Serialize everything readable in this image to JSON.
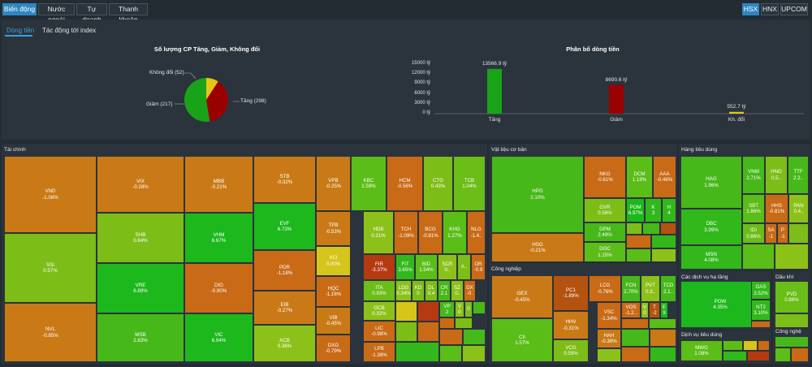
{
  "top_tabs": [
    {
      "label": "Biến động",
      "active": true
    },
    {
      "label": "Nước ngoài",
      "active": false
    },
    {
      "label": "Tự doanh",
      "active": false
    },
    {
      "label": "Thanh khoản",
      "active": false
    }
  ],
  "exchanges": [
    {
      "label": "HSX",
      "active": true
    },
    {
      "label": "HNX",
      "active": false
    },
    {
      "label": "UPCOM",
      "active": false
    }
  ],
  "sub_tabs": [
    {
      "label": "Dòng tiền",
      "active": true
    },
    {
      "label": "Tác động tới index",
      "active": false
    }
  ],
  "colors": {
    "up": "#19a319",
    "down": "#9b0000",
    "flat": "#e8c416",
    "neutral_tile": "#c97a16"
  },
  "pie": {
    "title": "Số lượng CP Tăng, Giảm, Không đổi",
    "slices": [
      {
        "label": "Không đổi (52)",
        "value": 52,
        "color": "#e8c416"
      },
      {
        "label": "Giảm (217)",
        "value": 217,
        "color": "#9b0000"
      },
      {
        "label": "Tăng (298)",
        "value": 298,
        "color": "#19a319"
      }
    ]
  },
  "chart_data": [
    {
      "type": "pie",
      "title": "Số lượng CP Tăng, Giảm, Không đổi",
      "categories": [
        "Không đổi",
        "Giảm",
        "Tăng"
      ],
      "values": [
        52,
        217,
        298
      ]
    },
    {
      "type": "bar",
      "title": "Phân bổ dòng tiền",
      "categories": [
        "Tăng",
        "Giảm",
        "Kh. đổi"
      ],
      "values": [
        13566.9,
        8690.6,
        552.7
      ],
      "value_labels": [
        "13566.9 tỷ",
        "8690.6 tỷ",
        "552.7 tỷ"
      ],
      "yticks": [
        "15000 tỷ",
        "12000 tỷ",
        "9000 tỷ",
        "6000 tỷ",
        "3000 tỷ",
        "0 tỷ"
      ],
      "ylim": [
        0,
        15000
      ],
      "colors": [
        "#19a319",
        "#9b0000",
        "#e8c416"
      ]
    }
  ],
  "bar_chart": {
    "title": "Phân bổ dòng tiền"
  },
  "sectors": [
    {
      "name": "Tài chính",
      "tiles": [
        {
          "t": "VND",
          "v": "-1.08%",
          "c": "#c97a16"
        },
        {
          "t": "SSI",
          "v": "0.57%",
          "c": "#7dbd17"
        },
        {
          "t": "NVL",
          "v": "-0.85%",
          "c": "#c97a16"
        },
        {
          "t": "VIX",
          "v": "-0.28%",
          "c": "#c97a16"
        },
        {
          "t": "SHB",
          "v": "0.84%",
          "c": "#7dbd17"
        },
        {
          "t": "VRE",
          "v": "6.89%",
          "c": "#1cb81c"
        },
        {
          "t": "MSB",
          "v": "2.63%",
          "c": "#47b81a"
        },
        {
          "t": "MBB",
          "v": "-0.21%",
          "c": "#c97a16"
        },
        {
          "t": "VHM",
          "v": "6.67%",
          "c": "#1cb81c"
        },
        {
          "t": "DIG",
          "v": "-0.90%",
          "c": "#c96a16"
        },
        {
          "t": "VIC",
          "v": "6.94%",
          "c": "#1cb81c"
        },
        {
          "t": "STB",
          "v": "-0.32%",
          "c": "#c97a16"
        },
        {
          "t": "EVF",
          "v": "6.73%",
          "c": "#1cb81c"
        },
        {
          "t": "PDR",
          "v": "-1.18%",
          "c": "#c96a16"
        },
        {
          "t": "EIB",
          "v": "-0.27%",
          "c": "#c97a16"
        },
        {
          "t": "ACB",
          "v": "0.36%",
          "c": "#8cc11a"
        },
        {
          "t": "VPB",
          "v": "-0.25%",
          "c": "#c97a16"
        },
        {
          "t": "TPB",
          "v": "-0.53%",
          "c": "#c97a16"
        },
        {
          "t": "VCI",
          "v": "0.00%",
          "c": "#d6c51a"
        },
        {
          "t": "HQC",
          "v": "-1.16%",
          "c": "#c96a16"
        },
        {
          "t": "VIB",
          "v": "-0.45%",
          "c": "#c97a16"
        },
        {
          "t": "DXG",
          "v": "-0.79%",
          "c": "#c96a16"
        },
        {
          "t": "KBC",
          "v": "1.59%",
          "c": "#5bbd17"
        },
        {
          "t": "HCM",
          "v": "-0.56%",
          "c": "#c96a16"
        },
        {
          "t": "CTG",
          "v": "0.43%",
          "c": "#7dbd17"
        },
        {
          "t": "TCB",
          "v": "1.04%",
          "c": "#6bbd17"
        },
        {
          "t": "HDB",
          "v": "0.21%",
          "c": "#8cc11a"
        },
        {
          "t": "TCH",
          "v": "-1.09%",
          "c": "#c96a16"
        },
        {
          "t": "BCG",
          "v": "-0.81%",
          "c": "#c96a16"
        },
        {
          "t": "KHG",
          "v": "1.27%",
          "c": "#5bbd17"
        },
        {
          "t": "NLG",
          "v": "-1.4..",
          "c": "#c96a16"
        },
        {
          "t": "FIR",
          "v": "-3.37%",
          "c": "#b43a12"
        },
        {
          "t": "FIT",
          "v": "3.65%",
          "c": "#32b81a"
        },
        {
          "t": "BID",
          "v": "1.54%",
          "c": "#5bbd17"
        },
        {
          "t": "SCR",
          "v": "0..",
          "c": "#8cc11a"
        },
        {
          "t": "A..",
          "v": "",
          "c": "#7dbd17"
        },
        {
          "t": "OR",
          "v": "-0.9",
          "c": "#c96a16"
        },
        {
          "t": "ITA",
          "v": "0.93%",
          "c": "#6bbd17"
        },
        {
          "t": "LDG",
          "v": "0.34%",
          "c": "#8cc11a"
        },
        {
          "t": "KD",
          "v": "0",
          "c": "#7dbd17"
        },
        {
          "t": "DL",
          "v": "0.4",
          "c": "#7dbd17"
        },
        {
          "t": "CR",
          "v": "2.1",
          "c": "#47b81a"
        },
        {
          "t": "SZ",
          "v": "0.",
          "c": "#8cc11a"
        },
        {
          "t": "DX",
          "v": "-0.",
          "c": "#c96a16"
        },
        {
          "t": "OCB",
          "v": "0.32%",
          "c": "#8cc11a"
        },
        {
          "t": "VP",
          "v": "2",
          "c": "#47b81a"
        },
        {
          "t": "V",
          "v": "0",
          "c": "#8cc11a"
        },
        {
          "t": "0",
          "v": "",
          "c": "#7dbd17"
        },
        {
          "t": "LIC",
          "v": "-0.98%",
          "c": "#c96a16"
        },
        {
          "t": "LPB",
          "v": "-1.39%",
          "c": "#c96a16"
        }
      ]
    },
    {
      "name": "Vật liệu cơ bản",
      "tiles": [
        {
          "t": "HPG",
          "v": "2.10%",
          "c": "#47b81a"
        },
        {
          "t": "HSG",
          "v": "-0.21%",
          "c": "#c97a16"
        },
        {
          "t": "NKG",
          "v": "-0.61%",
          "c": "#c96a16"
        },
        {
          "t": "DCM",
          "v": "1.18%",
          "c": "#5bbd17"
        },
        {
          "t": "AAA",
          "v": "-0.46%",
          "c": "#c96a16"
        },
        {
          "t": "GVR",
          "v": "0.56%",
          "c": "#7dbd17"
        },
        {
          "t": "POM",
          "v": "6.97%",
          "c": "#1cb81c"
        },
        {
          "t": "K",
          "v": "3",
          "c": "#32b81a"
        },
        {
          "t": "H",
          "v": "4",
          "c": "#32b81a"
        },
        {
          "t": "DPM",
          "v": "2.49%",
          "c": "#47b81a"
        },
        {
          "t": "DGC",
          "v": "1.15%",
          "c": "#5bbd17"
        }
      ]
    },
    {
      "name": "Công nghiệp",
      "tiles": [
        {
          "t": "GEX",
          "v": "-0.45%",
          "c": "#c97a16"
        },
        {
          "t": "CII",
          "v": "1.57%",
          "c": "#5bbd17"
        },
        {
          "t": "PC1",
          "v": "-1.89%",
          "c": "#b4520f"
        },
        {
          "t": "HHV",
          "v": "-0.31%",
          "c": "#c97a16"
        },
        {
          "t": "VCG",
          "v": "0.59%",
          "c": "#7dbd17"
        },
        {
          "t": "LCG",
          "v": "-0.76%",
          "c": "#c96a16"
        },
        {
          "t": "FCN",
          "v": "2.70%",
          "c": "#47b81a"
        },
        {
          "t": "PVT",
          "v": "0.3..",
          "c": "#8cc11a"
        },
        {
          "t": "TCD",
          "v": "2.1..",
          "c": "#47b81a"
        },
        {
          "t": "VSC",
          "v": "-1.34%",
          "c": "#c96a16"
        },
        {
          "t": "VOS",
          "v": "-1.2..",
          "c": "#c96a16"
        },
        {
          "t": "V",
          "v": "0",
          "c": "#8cc11a"
        },
        {
          "t": "T",
          "v": "-2",
          "c": "#b4520f"
        },
        {
          "t": "E",
          "v": "9",
          "c": "#1cb81c"
        },
        {
          "t": "HAH",
          "v": "-0.36%",
          "c": "#c97a16"
        }
      ]
    },
    {
      "name": "Hàng tiêu dùng",
      "tiles": [
        {
          "t": "HAG",
          "v": "1.96%",
          "c": "#47b81a"
        },
        {
          "t": "VNM",
          "v": "2.71%",
          "c": "#47b81a"
        },
        {
          "t": "HNG",
          "v": "0.5..",
          "c": "#7dbd17"
        },
        {
          "t": "TTF",
          "v": "2.2..",
          "c": "#47b81a"
        },
        {
          "t": "DBC",
          "v": "3.99%",
          "c": "#32b81a"
        },
        {
          "t": "SBT",
          "v": "1.86%",
          "c": "#5bbd17"
        },
        {
          "t": "HHS",
          "v": "-0.81%",
          "c": "#c96a16"
        },
        {
          "t": "PAN",
          "v": "0.4..",
          "c": "#8cc11a"
        },
        {
          "t": "IDI",
          "v": "0.86%",
          "c": "#6bbd17"
        },
        {
          "t": "SA",
          "v": "-1",
          "c": "#c96a16"
        },
        {
          "t": "P",
          "v": "-1",
          "c": "#c96a16"
        },
        {
          "t": "MSN",
          "v": "4.08%",
          "c": "#32b81a"
        }
      ]
    },
    {
      "name": "Các dịch vụ hạ tầng",
      "tiles": [
        {
          "t": "POW",
          "v": "4.35%",
          "c": "#1cb81c"
        },
        {
          "t": "GAS",
          "v": "3.52%",
          "c": "#32b81a"
        },
        {
          "t": "NT2",
          "v": "3.10%",
          "c": "#32b81a"
        }
      ]
    },
    {
      "name": "Dầu khí",
      "tiles": [
        {
          "t": "PVD",
          "v": "0.88%",
          "c": "#6bbd17"
        }
      ]
    },
    {
      "name": "Dịch vụ tiêu dùng",
      "tiles": [
        {
          "t": "MWG",
          "v": "1.08%",
          "c": "#5bbd17"
        }
      ]
    },
    {
      "name": "Công nghệ",
      "tiles": []
    }
  ]
}
